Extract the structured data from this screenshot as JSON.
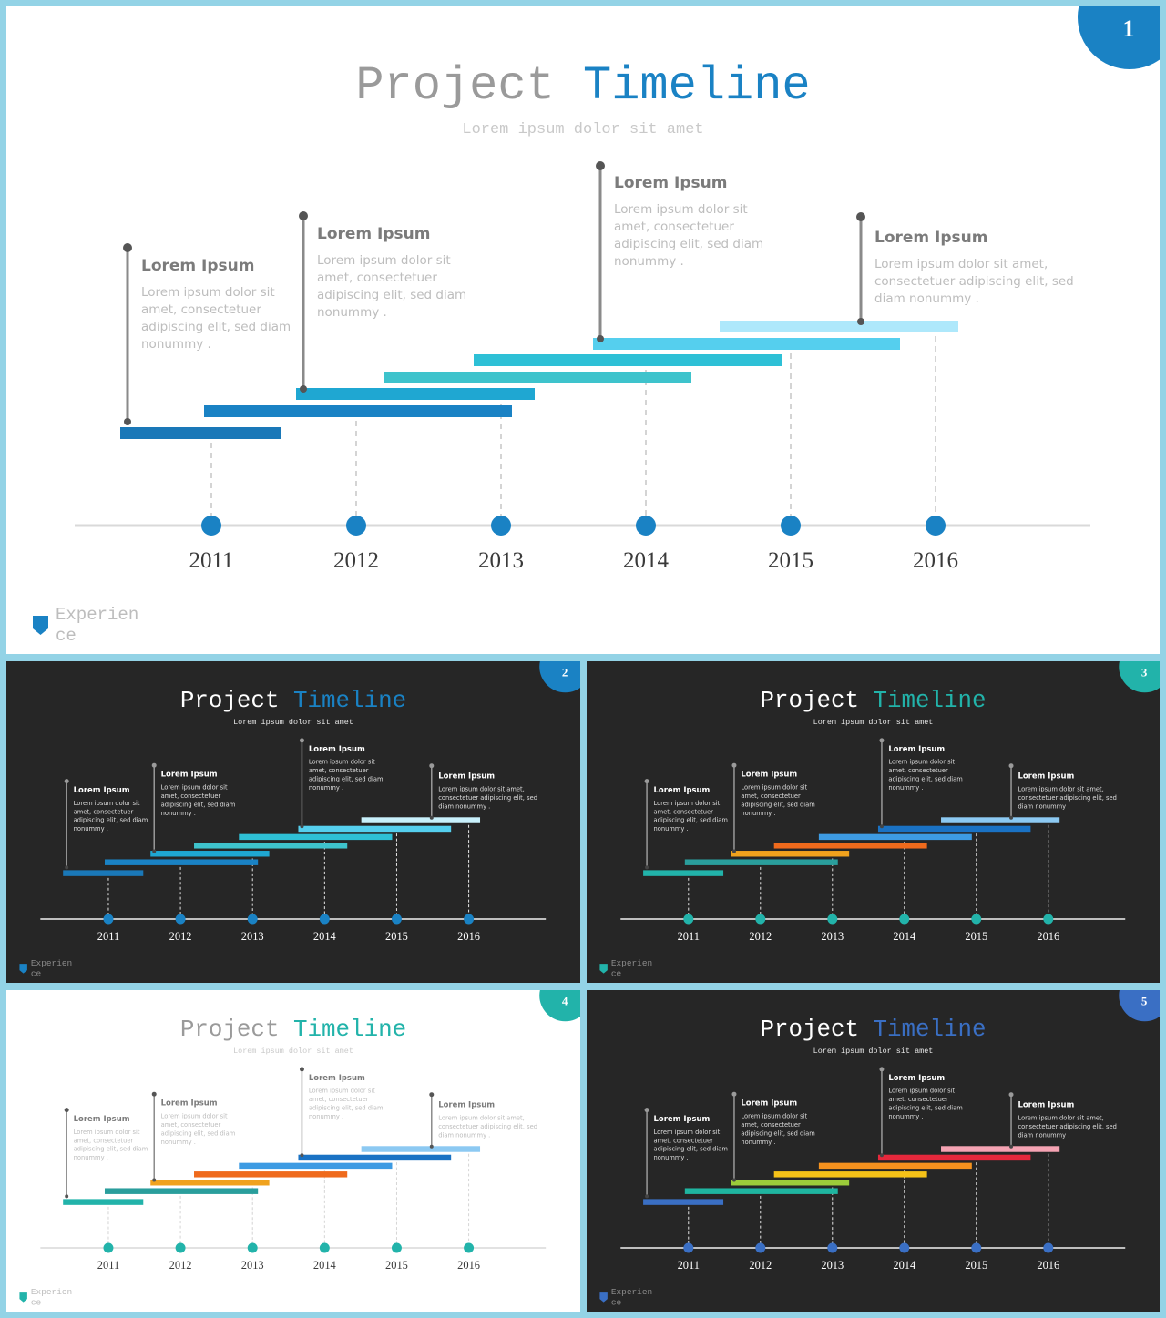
{
  "shared": {
    "title_word1": "Project",
    "title_word2": "Timeline",
    "subtitle": "Lorem ipsum dolor sit amet",
    "years": [
      "2011",
      "2012",
      "2013",
      "2014",
      "2015",
      "2016"
    ],
    "callouts": [
      {
        "title": "Lorem Ipsum",
        "lines": [
          "Lorem ipsum dolor sit",
          "amet, consectetuer",
          "adipiscing elit, sed diam",
          "nonummy ."
        ]
      },
      {
        "title": "Lorem Ipsum",
        "lines": [
          "Lorem ipsum dolor sit",
          "amet, consectetuer",
          "adipiscing elit, sed diam",
          "nonummy ."
        ]
      },
      {
        "title": "Lorem Ipsum",
        "lines": [
          "Lorem ipsum dolor sit",
          "amet, consectetuer",
          "adipiscing elit, sed diam",
          "nonummy ."
        ]
      },
      {
        "title": "Lorem Ipsum",
        "lines": [
          "Lorem ipsum dolor sit amet,",
          "consectetuer adipiscing elit, sed",
          "diam nonummy ."
        ]
      }
    ],
    "brand_line1": "Experien",
    "brand_line2": "ce"
  },
  "slides": [
    {
      "number": "1",
      "theme": "light",
      "accent": "#1a82c4",
      "bar_colors": [
        "#1a78b8",
        "#1a82c4",
        "#1fa7d2",
        "#3ec3cc",
        "#2ec0d6",
        "#55cfee",
        "#aee8fb"
      ]
    },
    {
      "number": "2",
      "theme": "dark",
      "accent": "#1a82c4",
      "bar_colors": [
        "#1a78b8",
        "#1a82c4",
        "#1fa7d2",
        "#3ec3cc",
        "#2ec0d6",
        "#55cfee",
        "#c8f0fb"
      ]
    },
    {
      "number": "3",
      "theme": "dark",
      "accent": "#22b3aa",
      "bar_colors": [
        "#22b3aa",
        "#2a9e9c",
        "#f0a21d",
        "#ef6a1c",
        "#3d9be3",
        "#1a72c4",
        "#8cc9f2"
      ]
    },
    {
      "number": "4",
      "theme": "light",
      "accent": "#22b3aa",
      "bar_colors": [
        "#22b3aa",
        "#2a9e9c",
        "#f0a21d",
        "#ef6a1c",
        "#3d9be3",
        "#1a72c4",
        "#8cc9f2"
      ]
    },
    {
      "number": "5",
      "theme": "dark",
      "accent": "#3a6fc4",
      "bar_colors": [
        "#3a6fc4",
        "#1fb5a0",
        "#9ccc3a",
        "#f5c218",
        "#f5921e",
        "#e6283c",
        "#f5a3b3"
      ]
    }
  ]
}
